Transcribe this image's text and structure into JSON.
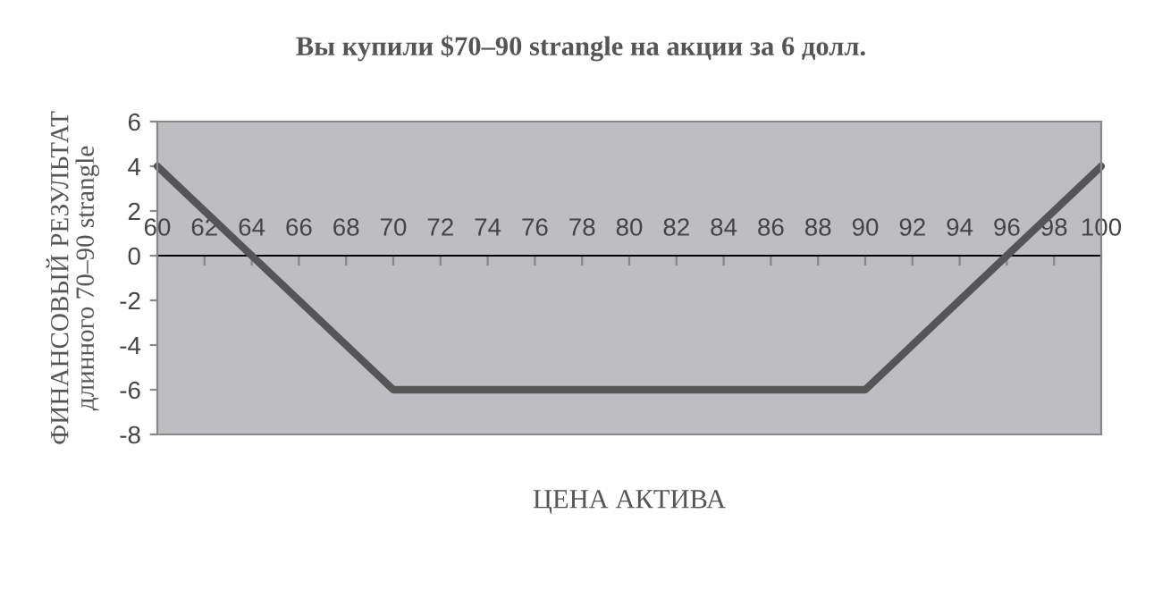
{
  "chart_data": {
    "type": "line",
    "title": "Вы купили $70–90 strangle на акции за 6 долл.",
    "xlabel": "ЦЕНА АКТИВА",
    "ylabel": "ФИНАНСОВЫЙ РЕЗУЛЬТАТ\nдлинного 70–90 strangle",
    "x": [
      60,
      70,
      90,
      100
    ],
    "series": [
      {
        "color": "#555555",
        "values": [
          4,
          -6,
          -6,
          4
        ]
      }
    ],
    "xlim": [
      60,
      100
    ],
    "xticks": [
      60,
      62,
      64,
      66,
      68,
      70,
      72,
      74,
      76,
      78,
      80,
      82,
      84,
      86,
      88,
      90,
      92,
      94,
      96,
      98,
      100
    ],
    "ylim": [
      -8,
      6
    ],
    "yticks": [
      -8,
      -6,
      -4,
      -2,
      0,
      2,
      4,
      6
    ],
    "grid": false,
    "legend": false,
    "marker": "none",
    "line_style": "solid"
  }
}
